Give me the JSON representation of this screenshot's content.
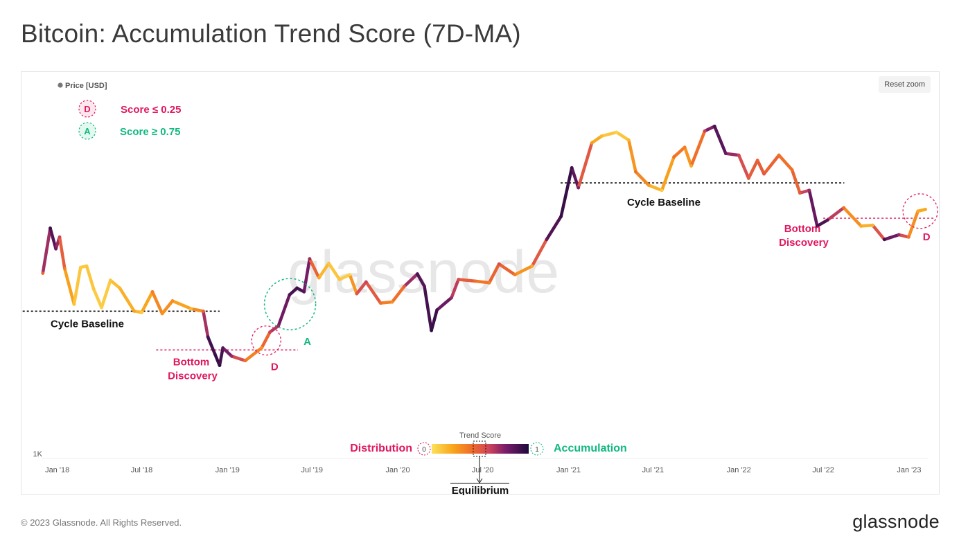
{
  "title": "Bitcoin: Accumulation Trend Score (7D-MA)",
  "reset_zoom": "Reset zoom",
  "footer": {
    "copyright": "© 2023 Glassnode. All Rights Reserved.",
    "logo": "glassnode"
  },
  "watermark": "glassnode",
  "legend_key": {
    "distribution_badge": "D",
    "distribution_rule": "Score ≤ 0.25",
    "accumulation_badge": "A",
    "accumulation_rule": "Score ≥ 0.75"
  },
  "annotations": {
    "cycle_baseline": "Cycle Baseline",
    "bottom": "Bottom",
    "discovery": "Discovery",
    "d": "D",
    "a": "A"
  },
  "colorbar": {
    "title": "Trend Score",
    "left_label": "Distribution",
    "right_label": "Accumulation",
    "min": "0",
    "max": "1",
    "equilibrium": "Equilibrium"
  },
  "colors": {
    "distribution": "#e0185f",
    "accumulation": "#10b981",
    "score_low": "#f9e04a",
    "score_mid": "#d2475a",
    "score_high": "#1e0a3c"
  },
  "chart_data": {
    "type": "line",
    "series": [
      {
        "name": "Price [USD]",
        "color_by": "Accumulation Trend Score (7D-MA)",
        "points": [
          {
            "x": "2017-12-01",
            "y": 10400,
            "score": 0.45
          },
          {
            "x": "2017-12-17",
            "y": 18500,
            "score": 0.92
          },
          {
            "x": "2017-12-29",
            "y": 14200,
            "score": 0.8
          },
          {
            "x": "2018-01-06",
            "y": 16500,
            "score": 0.6
          },
          {
            "x": "2018-01-17",
            "y": 11000,
            "score": 0.35
          },
          {
            "x": "2018-02-06",
            "y": 7000,
            "score": 0.12
          },
          {
            "x": "2018-02-20",
            "y": 11200,
            "score": 0.08
          },
          {
            "x": "2018-03-05",
            "y": 11400,
            "score": 0.1
          },
          {
            "x": "2018-03-20",
            "y": 8500,
            "score": 0.1
          },
          {
            "x": "2018-04-06",
            "y": 6700,
            "score": 0.06
          },
          {
            "x": "2018-04-25",
            "y": 9500,
            "score": 0.1
          },
          {
            "x": "2018-05-15",
            "y": 8600,
            "score": 0.15
          },
          {
            "x": "2018-06-15",
            "y": 6400,
            "score": 0.22
          },
          {
            "x": "2018-07-01",
            "y": 6300,
            "score": 0.08
          },
          {
            "x": "2018-07-24",
            "y": 8200,
            "score": 0.35
          },
          {
            "x": "2018-08-14",
            "y": 6200,
            "score": 0.28
          },
          {
            "x": "2018-09-05",
            "y": 7300,
            "score": 0.3
          },
          {
            "x": "2018-10-15",
            "y": 6600,
            "score": 0.15
          },
          {
            "x": "2018-11-10",
            "y": 6400,
            "score": 0.45
          },
          {
            "x": "2018-11-20",
            "y": 4600,
            "score": 0.9
          },
          {
            "x": "2018-12-05",
            "y": 3700,
            "score": 0.92
          },
          {
            "x": "2018-12-15",
            "y": 3200,
            "score": 0.95
          },
          {
            "x": "2018-12-22",
            "y": 4000,
            "score": 0.85
          },
          {
            "x": "2019-01-10",
            "y": 3600,
            "score": 0.7
          },
          {
            "x": "2019-02-08",
            "y": 3400,
            "score": 0.4
          },
          {
            "x": "2019-03-15",
            "y": 4000,
            "score": 0.28
          },
          {
            "x": "2019-04-02",
            "y": 4900,
            "score": 0.6
          },
          {
            "x": "2019-04-20",
            "y": 5300,
            "score": 0.7
          },
          {
            "x": "2019-05-14",
            "y": 7900,
            "score": 0.88
          },
          {
            "x": "2019-05-30",
            "y": 8600,
            "score": 0.92
          },
          {
            "x": "2019-06-14",
            "y": 8200,
            "score": 0.85
          },
          {
            "x": "2019-06-26",
            "y": 12500,
            "score": 0.7
          },
          {
            "x": "2019-07-16",
            "y": 9800,
            "score": 0.2
          },
          {
            "x": "2019-08-06",
            "y": 11800,
            "score": 0.1
          },
          {
            "x": "2019-08-29",
            "y": 9600,
            "score": 0.1
          },
          {
            "x": "2019-09-20",
            "y": 10200,
            "score": 0.05
          },
          {
            "x": "2019-10-05",
            "y": 8000,
            "score": 0.5
          },
          {
            "x": "2019-10-25",
            "y": 9300,
            "score": 0.6
          },
          {
            "x": "2019-11-25",
            "y": 7100,
            "score": 0.4
          },
          {
            "x": "2019-12-20",
            "y": 7200,
            "score": 0.3
          },
          {
            "x": "2020-01-15",
            "y": 8800,
            "score": 0.5
          },
          {
            "x": "2020-02-12",
            "y": 10300,
            "score": 0.88
          },
          {
            "x": "2020-02-27",
            "y": 8800,
            "score": 0.85
          },
          {
            "x": "2020-03-13",
            "y": 5000,
            "score": 0.95
          },
          {
            "x": "2020-03-25",
            "y": 6500,
            "score": 0.9
          },
          {
            "x": "2020-04-25",
            "y": 7600,
            "score": 0.7
          },
          {
            "x": "2020-05-10",
            "y": 9600,
            "score": 0.55
          },
          {
            "x": "2020-06-15",
            "y": 9400,
            "score": 0.4
          },
          {
            "x": "2020-07-15",
            "y": 9200,
            "score": 0.35
          },
          {
            "x": "2020-08-05",
            "y": 11700,
            "score": 0.55
          },
          {
            "x": "2020-09-08",
            "y": 10200,
            "score": 0.35
          },
          {
            "x": "2020-10-15",
            "y": 11400,
            "score": 0.2
          },
          {
            "x": "2020-11-15",
            "y": 16000,
            "score": 0.8
          },
          {
            "x": "2020-12-16",
            "y": 21500,
            "score": 0.95
          },
          {
            "x": "2021-01-08",
            "y": 40000,
            "score": 0.92
          },
          {
            "x": "2021-01-22",
            "y": 31000,
            "score": 0.75
          },
          {
            "x": "2021-02-20",
            "y": 55000,
            "score": 0.25
          },
          {
            "x": "2021-03-13",
            "y": 60000,
            "score": 0.15
          },
          {
            "x": "2021-04-14",
            "y": 63000,
            "score": 0.05
          },
          {
            "x": "2021-05-10",
            "y": 57000,
            "score": 0.15
          },
          {
            "x": "2021-05-25",
            "y": 38000,
            "score": 0.4
          },
          {
            "x": "2021-06-22",
            "y": 32000,
            "score": 0.25
          },
          {
            "x": "2021-07-20",
            "y": 30000,
            "score": 0.08
          },
          {
            "x": "2021-08-15",
            "y": 46000,
            "score": 0.4
          },
          {
            "x": "2021-09-07",
            "y": 52000,
            "score": 0.35
          },
          {
            "x": "2021-09-21",
            "y": 41000,
            "score": 0.2
          },
          {
            "x": "2021-10-20",
            "y": 64000,
            "score": 0.6
          },
          {
            "x": "2021-11-10",
            "y": 68000,
            "score": 0.9
          },
          {
            "x": "2021-12-04",
            "y": 48000,
            "score": 0.8
          },
          {
            "x": "2022-01-01",
            "y": 47000,
            "score": 0.6
          },
          {
            "x": "2022-01-22",
            "y": 35000,
            "score": 0.5
          },
          {
            "x": "2022-02-10",
            "y": 44000,
            "score": 0.45
          },
          {
            "x": "2022-02-24",
            "y": 37000,
            "score": 0.5
          },
          {
            "x": "2022-03-28",
            "y": 47000,
            "score": 0.4
          },
          {
            "x": "2022-04-25",
            "y": 39000,
            "score": 0.4
          },
          {
            "x": "2022-05-12",
            "y": 29000,
            "score": 0.5
          },
          {
            "x": "2022-06-01",
            "y": 30000,
            "score": 0.7
          },
          {
            "x": "2022-06-18",
            "y": 19000,
            "score": 0.92
          },
          {
            "x": "2022-07-10",
            "y": 20500,
            "score": 0.85
          },
          {
            "x": "2022-08-14",
            "y": 24000,
            "score": 0.4
          },
          {
            "x": "2022-09-20",
            "y": 19000,
            "score": 0.2
          },
          {
            "x": "2022-10-15",
            "y": 19200,
            "score": 0.15
          },
          {
            "x": "2022-11-09",
            "y": 16000,
            "score": 0.9
          },
          {
            "x": "2022-12-10",
            "y": 17000,
            "score": 0.7
          },
          {
            "x": "2022-12-31",
            "y": 16500,
            "score": 0.4
          },
          {
            "x": "2023-01-20",
            "y": 23000,
            "score": 0.2
          },
          {
            "x": "2023-02-05",
            "y": 23500,
            "score": 0.2
          }
        ]
      }
    ],
    "x_ticks": [
      {
        "x": "2018-01-01",
        "label": "Jan '18"
      },
      {
        "x": "2018-07-01",
        "label": "Jul '18"
      },
      {
        "x": "2019-01-01",
        "label": "Jan '19"
      },
      {
        "x": "2019-07-01",
        "label": "Jul '19"
      },
      {
        "x": "2020-01-01",
        "label": "Jan '20"
      },
      {
        "x": "2020-07-01",
        "label": "Jul '20"
      },
      {
        "x": "2021-01-01",
        "label": "Jan '21"
      },
      {
        "x": "2021-07-01",
        "label": "Jul '21"
      },
      {
        "x": "2022-01-01",
        "label": "Jan '22"
      },
      {
        "x": "2022-07-01",
        "label": "Jul '22"
      },
      {
        "x": "2023-01-01",
        "label": "Jan '23"
      }
    ],
    "y_scale": "log",
    "y_ticks": [
      {
        "y": 1000,
        "label": "1K"
      }
    ],
    "xlim": [
      "2017-11-15",
      "2023-02-25"
    ],
    "ylim": [
      1000,
      80000
    ],
    "legend": {
      "label": "Price [USD]",
      "position": "top-left"
    },
    "grid": false,
    "baselines": [
      {
        "label": "Cycle Baseline",
        "y": 6400,
        "x_start": "2017-10-01",
        "x_end": "2018-12-15"
      },
      {
        "label": "Cycle Baseline",
        "y": 33000,
        "x_start": "2020-12-15",
        "x_end": "2022-08-15"
      }
    ],
    "bottom_discovery": [
      {
        "y": 3900,
        "x_start": "2018-08-01",
        "x_end": "2019-06-01"
      },
      {
        "y": 21000,
        "x_start": "2022-07-01",
        "x_end": "2023-02-25"
      }
    ],
    "markers": [
      {
        "type": "D",
        "x": "2019-03-25",
        "y": 4400
      },
      {
        "type": "A",
        "x": "2019-05-15",
        "y": 7000
      },
      {
        "type": "D",
        "x": "2023-01-25",
        "y": 23000
      }
    ]
  }
}
